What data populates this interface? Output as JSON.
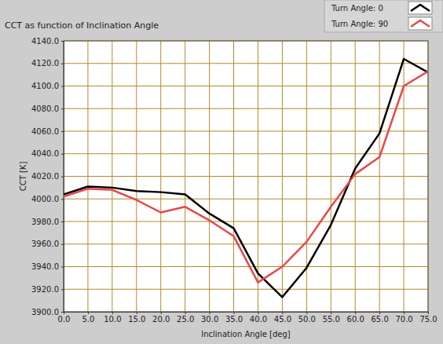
{
  "chart_data": {
    "type": "line",
    "title": "CCT as function of Inclination Angle",
    "x_label": "Inclination Angle [deg]",
    "y_label": "CCT [K]",
    "x": [
      0,
      5,
      10,
      15,
      20,
      25,
      30,
      35,
      40,
      45,
      50,
      55,
      60,
      65,
      70,
      75
    ],
    "series": [
      {
        "name": "Turn Angle: 0",
        "color": "#000000",
        "values": [
          4004,
          4011,
          4010,
          4007,
          4006,
          4004,
          3987,
          3974,
          3934,
          3913,
          3939,
          3977,
          4027,
          4058,
          4124,
          4112
        ]
      },
      {
        "name": "Turn Angle: 90",
        "color": "#e8474c",
        "values": [
          4002,
          4009,
          4008,
          3999,
          3988,
          3993,
          3981,
          3967,
          3926,
          3940,
          3962,
          3993,
          4022,
          4037,
          4100,
          4113
        ]
      }
    ],
    "xlim": [
      0,
      75
    ],
    "xticks": [
      {
        "value": 0,
        "label": "0.0"
      },
      {
        "value": 5,
        "label": "5.0"
      },
      {
        "value": 10,
        "label": "10.0"
      },
      {
        "value": 15,
        "label": "15.0"
      },
      {
        "value": 20,
        "label": "20.0"
      },
      {
        "value": 25,
        "label": "25.0"
      },
      {
        "value": 30,
        "label": "30.0"
      },
      {
        "value": 35,
        "label": "35.0"
      },
      {
        "value": 40,
        "label": "40.0"
      },
      {
        "value": 45,
        "label": "45.0"
      },
      {
        "value": 50,
        "label": "50.0"
      },
      {
        "value": 55,
        "label": "55.0"
      },
      {
        "value": 60,
        "label": "60.0"
      },
      {
        "value": 65,
        "label": "65.0"
      },
      {
        "value": 70,
        "label": "70.0"
      },
      {
        "value": 75,
        "label": "75.0"
      }
    ],
    "ylim": [
      3900,
      4140
    ],
    "yticks": [
      {
        "value": 3900,
        "label": "3900.0"
      },
      {
        "value": 3920,
        "label": "3920.0"
      },
      {
        "value": 3940,
        "label": "3940.0"
      },
      {
        "value": 3960,
        "label": "3960.0"
      },
      {
        "value": 3980,
        "label": "3980.0"
      },
      {
        "value": 4000,
        "label": "4000.0"
      },
      {
        "value": 4020,
        "label": "4020.0"
      },
      {
        "value": 4040,
        "label": "4040.0"
      },
      {
        "value": 4060,
        "label": "4060.0"
      },
      {
        "value": 4080,
        "label": "4080.0"
      },
      {
        "value": 4100,
        "label": "4100.0"
      },
      {
        "value": 4120,
        "label": "4120.0"
      },
      {
        "value": 4140,
        "label": "4140.0"
      }
    ],
    "grid": true,
    "legend": "top-right"
  }
}
